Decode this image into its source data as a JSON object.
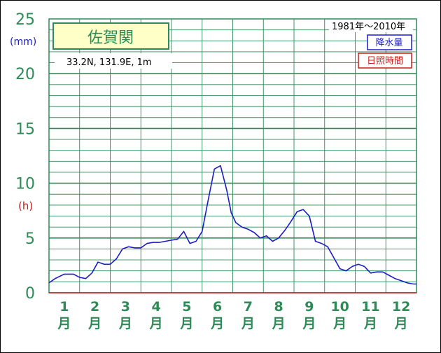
{
  "station": {
    "name": "佐賀関",
    "coords": "33.2N,  131.9E,  1m",
    "period": "1981年～2010年"
  },
  "legend": {
    "precip_label": "降水量",
    "sunshine_label": "日照時間",
    "precip_color": "#1c1cc8",
    "sunshine_color": "#c81c1c"
  },
  "units": {
    "left_top": "(mm)",
    "left_mid": "(h)"
  },
  "chart_data": {
    "type": "line",
    "title": "佐賀関",
    "x_ticks": [
      "1",
      "2",
      "3",
      "4",
      "5",
      "6",
      "7",
      "8",
      "9",
      "10",
      "11",
      "12"
    ],
    "x_tick_suffix": "月",
    "y_ticks": [
      0,
      5,
      10,
      15,
      20,
      25
    ],
    "ylim": [
      0,
      25
    ],
    "xlim": [
      0.5,
      12.5
    ],
    "grid": true,
    "series": [
      {
        "name": "降水量",
        "color": "#1c1cc8",
        "x": [
          0.5,
          0.7,
          1.0,
          1.3,
          1.5,
          1.7,
          1.9,
          2.1,
          2.3,
          2.5,
          2.7,
          2.9,
          3.1,
          3.3,
          3.5,
          3.7,
          3.9,
          4.1,
          4.3,
          4.5,
          4.7,
          4.9,
          5.1,
          5.3,
          5.5,
          5.7,
          5.9,
          6.1,
          6.3,
          6.45,
          6.6,
          6.8,
          7.0,
          7.2,
          7.4,
          7.6,
          7.8,
          8.0,
          8.2,
          8.4,
          8.6,
          8.8,
          9.0,
          9.2,
          9.4,
          9.6,
          9.8,
          10.0,
          10.2,
          10.4,
          10.6,
          10.8,
          11.0,
          11.2,
          11.4,
          11.6,
          11.8,
          12.0,
          12.2,
          12.4,
          12.5
        ],
        "y": [
          0.9,
          1.3,
          1.7,
          1.7,
          1.4,
          1.3,
          1.8,
          2.8,
          2.6,
          2.6,
          3.1,
          4.0,
          4.2,
          4.1,
          4.1,
          4.5,
          4.6,
          4.6,
          4.7,
          4.8,
          4.9,
          5.6,
          4.5,
          4.7,
          5.6,
          8.5,
          11.3,
          11.6,
          9.4,
          7.3,
          6.4,
          6.0,
          5.8,
          5.5,
          5.0,
          5.2,
          4.7,
          5.0,
          5.7,
          6.5,
          7.4,
          7.6,
          7.0,
          4.7,
          4.5,
          4.2,
          3.2,
          2.2,
          2.0,
          2.4,
          2.6,
          2.4,
          1.8,
          1.9,
          1.9,
          1.6,
          1.3,
          1.1,
          0.9,
          0.8,
          0.8
        ]
      },
      {
        "name": "日照時間",
        "color": "#c81c1c",
        "x": [
          0.5,
          12.5
        ],
        "y": [
          0,
          0
        ]
      }
    ]
  }
}
